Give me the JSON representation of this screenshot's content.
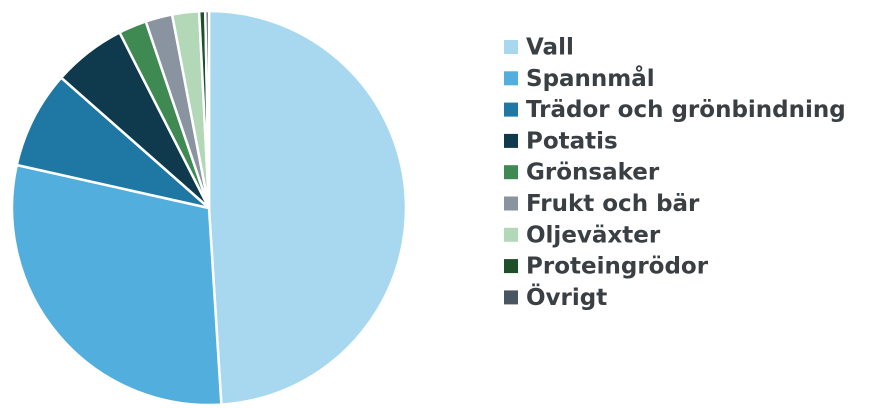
{
  "chart_data": {
    "type": "pie",
    "categories": [
      "Vall",
      "Spannmål",
      "Trädor och grönbindning",
      "Potatis",
      "Grönsaker",
      "Frukt och bär",
      "Oljeväxter",
      "Proteingrödor",
      "Övrigt"
    ],
    "values": [
      49,
      29.5,
      8,
      6,
      2.3,
      2.2,
      2.2,
      0.5,
      0.3
    ],
    "colors": [
      "#a8d8ef",
      "#52aedc",
      "#1f78a4",
      "#0f3a4e",
      "#3f8a52",
      "#8a93a0",
      "#b2d8b8",
      "#1f4f2a",
      "#4a5562"
    ],
    "legend": "right"
  }
}
